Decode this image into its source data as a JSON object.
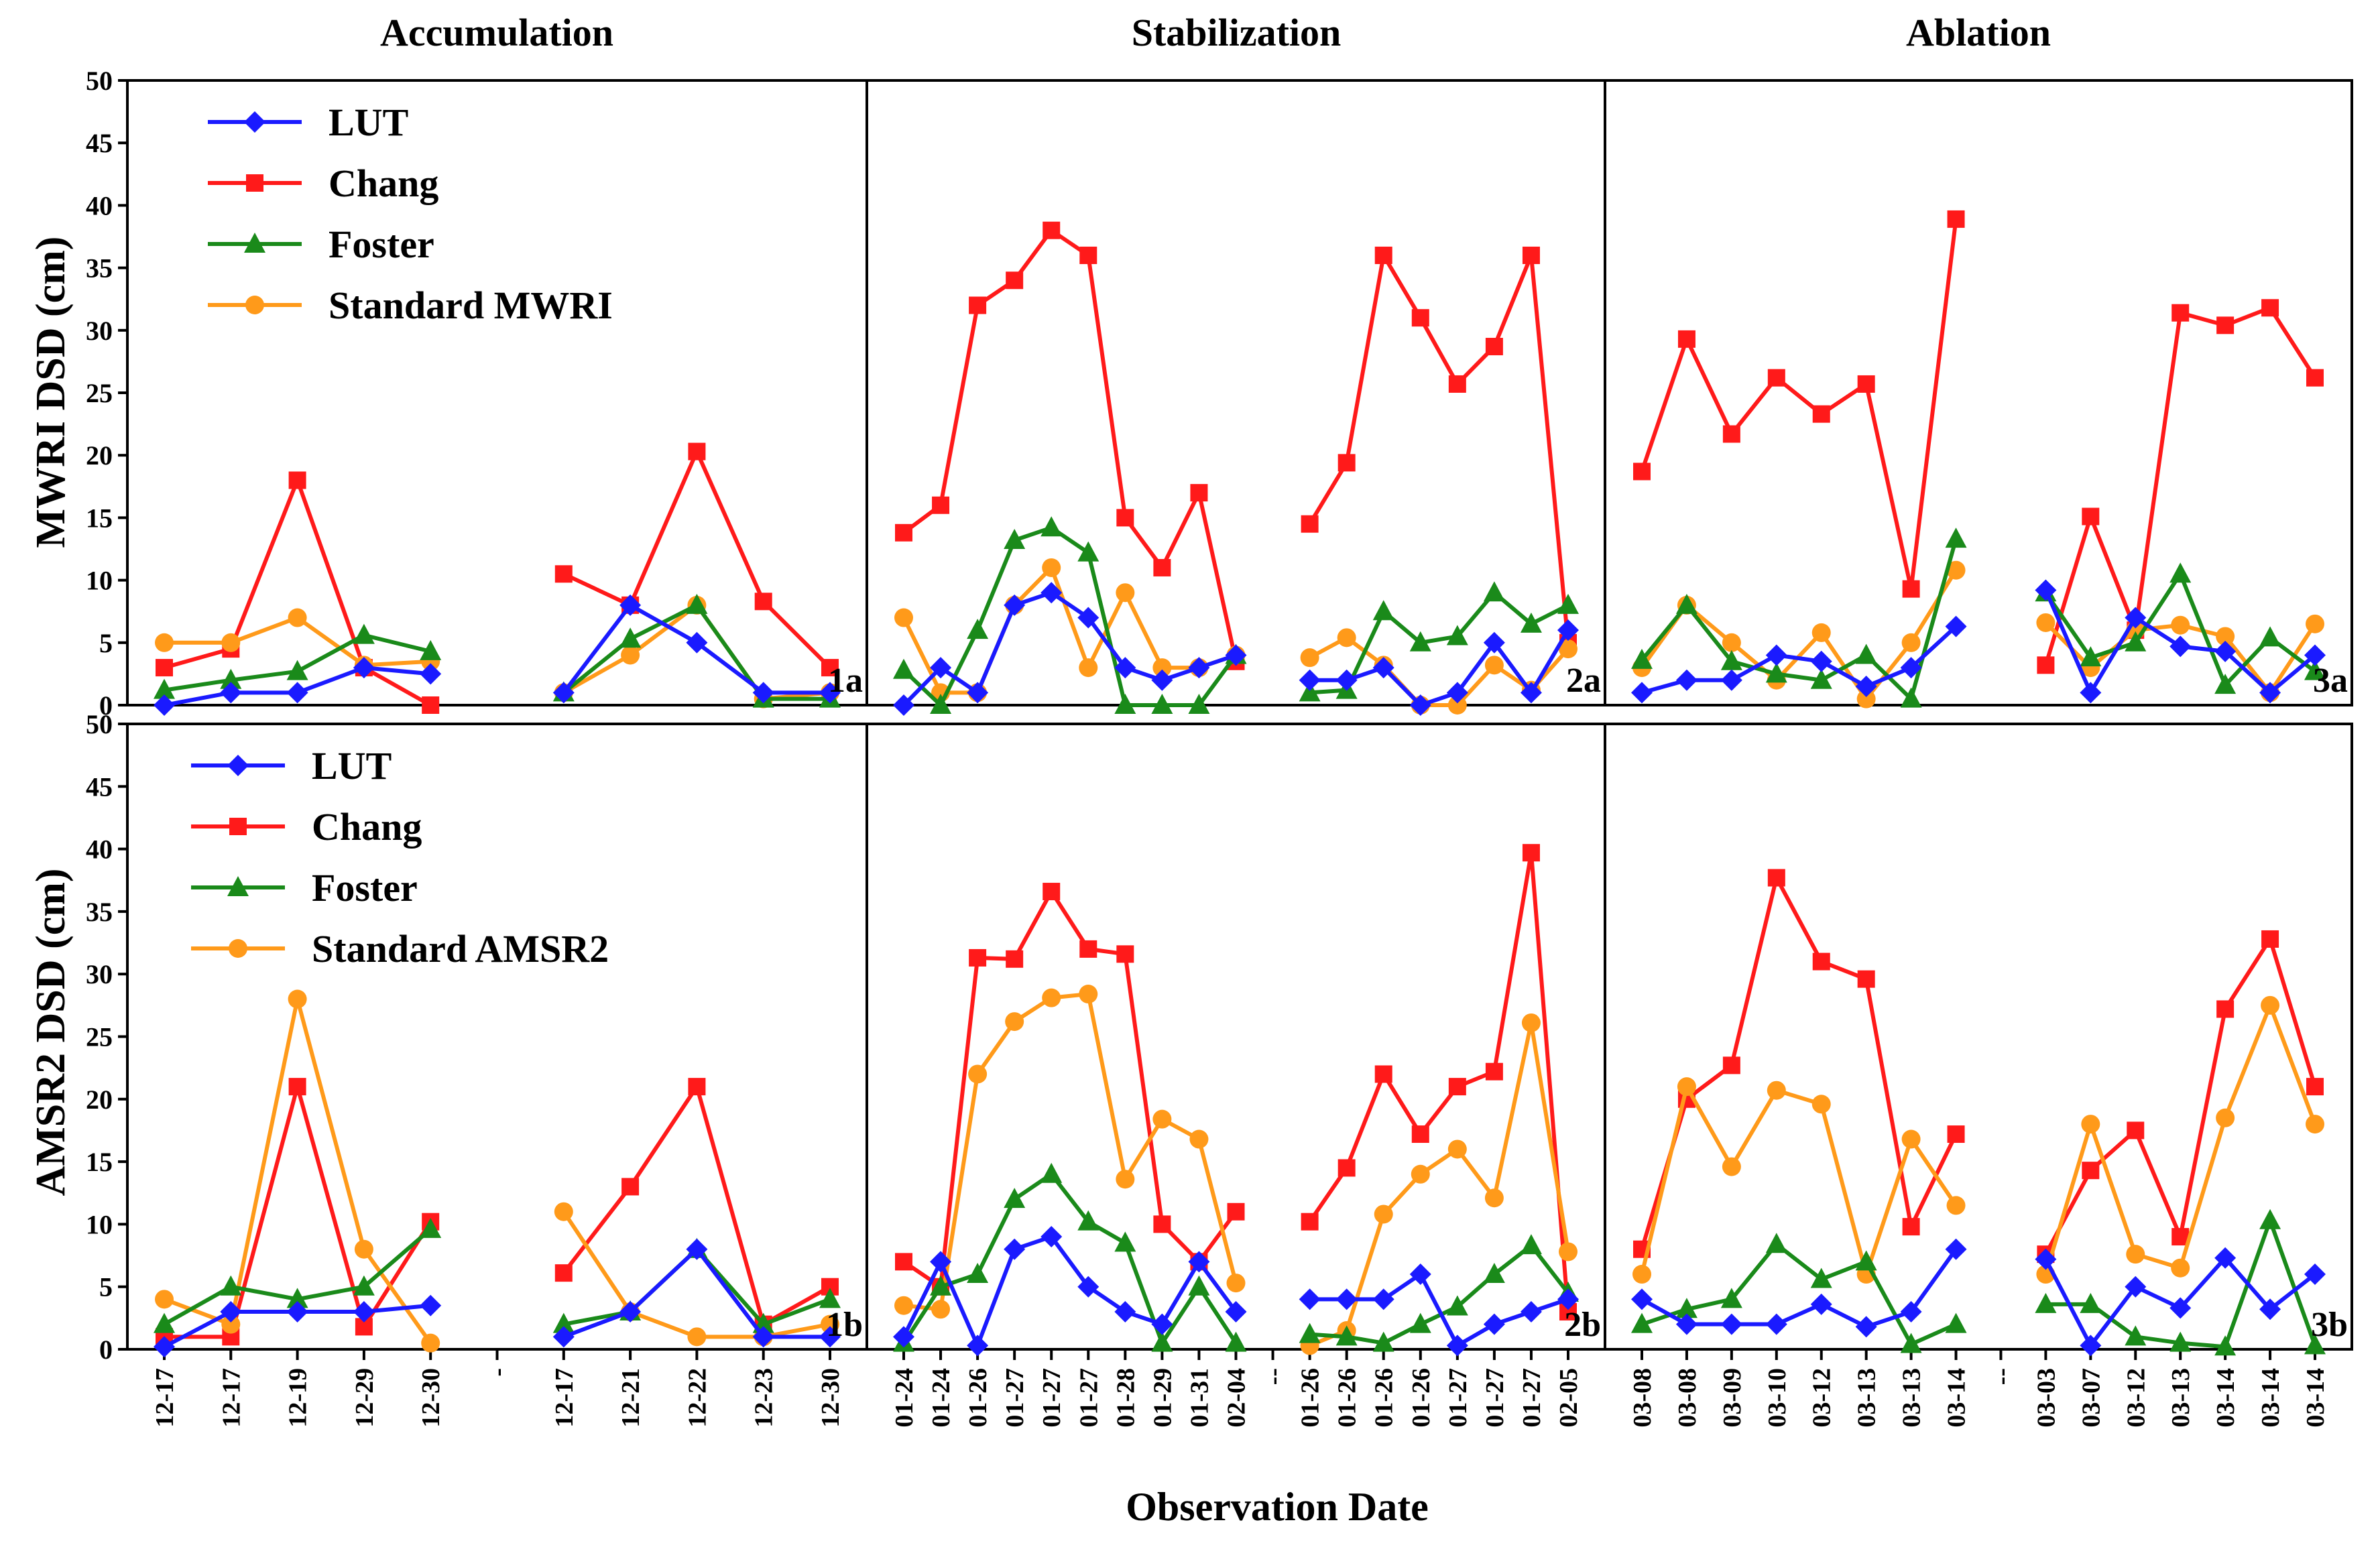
{
  "chart_data": {
    "type": "line",
    "xlabel": "Observation Date",
    "ylim": [
      0,
      50
    ],
    "yticks": [
      0,
      5,
      10,
      15,
      20,
      25,
      30,
      35,
      40,
      45,
      50
    ],
    "stage_titles": [
      "Accumulation",
      "Stabilization",
      "Ablation"
    ],
    "series_colors": {
      "LUT": "#1a1aff",
      "Chang": "#ff1a1a",
      "Foster": "#1a8a1a",
      "Standard": "#ff9a1a"
    },
    "series_markers": {
      "LUT": "diamond",
      "Chang": "square",
      "Foster": "triangle",
      "Standard": "circle"
    },
    "columns": [
      {
        "stage": "Accumulation",
        "categories": [
          "12-17",
          "12-17",
          "12-19",
          "12-29",
          "12-30",
          "-",
          "12-17",
          "12-21",
          "12-22",
          "12-23",
          "12-30"
        ]
      },
      {
        "stage": "Stabilization",
        "categories": [
          "01-24",
          "01-24",
          "01-26",
          "01-27",
          "01-27",
          "01-27",
          "01-28",
          "01-29",
          "01-31",
          "02-04",
          "--",
          "01-26",
          "01-26",
          "01-26",
          "01-26",
          "01-27",
          "01-27",
          "01-27",
          "02-05"
        ]
      },
      {
        "stage": "Ablation",
        "categories": [
          "03-08",
          "03-08",
          "03-09",
          "03-10",
          "03-12",
          "03-13",
          "03-13",
          "03-14",
          "--",
          "03-03",
          "03-07",
          "03-12",
          "03-13",
          "03-14",
          "03-14",
          "03-14"
        ]
      }
    ],
    "rows": [
      {
        "ylabel": "MWRI  DSD (cm)",
        "legend": [
          "LUT",
          "Chang",
          "Foster",
          "Standard MWRI"
        ],
        "panel_labels": [
          "1a",
          "2a",
          "3a"
        ],
        "panels": [
          {
            "LUT": [
              0,
              1,
              1,
              3,
              2.5,
              null,
              1,
              8,
              5,
              1,
              1
            ],
            "Chang": [
              3,
              4.5,
              18,
              3,
              0,
              null,
              10.5,
              8,
              20.3,
              8.3,
              3
            ],
            "Foster": [
              1.2,
              2,
              2.7,
              5.6,
              4.3,
              null,
              1,
              5.3,
              8,
              0.5,
              0.5
            ],
            "Standard": [
              5,
              5,
              7,
              3.2,
              3.5,
              null,
              1,
              4,
              8,
              0.5,
              1
            ]
          },
          {
            "LUT": [
              0,
              3,
              1,
              8,
              9,
              7,
              3,
              2,
              3,
              4,
              null,
              2,
              2,
              3,
              0,
              1,
              5,
              1,
              6
            ],
            "Chang": [
              13.8,
              16,
              32,
              34,
              38,
              36,
              15,
              11,
              17,
              3.5,
              null,
              14.5,
              19.4,
              36,
              31,
              25.7,
              28.7,
              36,
              5
            ],
            "Foster": [
              2.8,
              0,
              6,
              13.2,
              14.2,
              12.2,
              0,
              0,
              0,
              4,
              null,
              1,
              1.2,
              7.5,
              5,
              5.5,
              9,
              6.5,
              8
            ],
            "Standard": [
              7,
              1,
              1,
              8,
              11,
              3,
              9,
              3,
              3,
              4,
              null,
              3.8,
              5.4,
              3.2,
              0,
              0,
              3.2,
              1.2,
              4.5
            ]
          },
          {
            "LUT": [
              1,
              2,
              2,
              4,
              3.5,
              1.5,
              3,
              6.3,
              null,
              9.2,
              1,
              7,
              4.7,
              4.3,
              1,
              4
            ],
            "Chang": [
              18.7,
              29.3,
              21.7,
              26.2,
              23.3,
              25.7,
              9.3,
              38.9,
              null,
              3.2,
              15.1,
              6,
              31.4,
              30.4,
              31.8,
              26.2
            ],
            "Foster": [
              3.6,
              8,
              3.5,
              2.5,
              2,
              4,
              0.5,
              13.3,
              null,
              9,
              3.8,
              5,
              10.5,
              1.6,
              5.4,
              2.7
            ],
            "Standard": [
              3,
              8,
              5,
              2,
              5.8,
              0.5,
              5,
              10.8,
              null,
              6.6,
              3,
              6,
              6.4,
              5.5,
              1,
              6.5
            ]
          }
        ]
      },
      {
        "ylabel": "AMSR2 DSD (cm)",
        "legend": [
          "LUT",
          "Chang",
          "Foster",
          "Standard AMSR2"
        ],
        "panel_labels": [
          "1b",
          "2b",
          "3b"
        ],
        "panels": [
          {
            "LUT": [
              0.2,
              3,
              3,
              3,
              3.5,
              null,
              1,
              3,
              8,
              1,
              1
            ],
            "Chang": [
              1,
              1,
              21,
              1.8,
              10.2,
              null,
              6.1,
              13,
              21,
              2,
              5
            ],
            "Foster": [
              2,
              5,
              4,
              5,
              9.6,
              null,
              2,
              3,
              8,
              2,
              4
            ],
            "Standard": [
              4,
              2,
              28,
              8,
              0.5,
              null,
              11,
              3,
              1,
              1,
              2
            ]
          },
          {
            "LUT": [
              1,
              7,
              0.3,
              8,
              9,
              5,
              3,
              2,
              7,
              3,
              null,
              4,
              4,
              4,
              6,
              0.3,
              2,
              3,
              4
            ],
            "Chang": [
              7,
              5,
              31.3,
              31.2,
              36.6,
              32,
              31.6,
              10,
              7,
              11,
              null,
              10.2,
              14.5,
              22,
              17.2,
              21,
              22.2,
              39.7,
              3
            ],
            "Foster": [
              0.5,
              5,
              6,
              12,
              14,
              10.2,
              8.5,
              0.5,
              5,
              0.5,
              null,
              1.2,
              1,
              0.5,
              2,
              3.4,
              6,
              8.3,
              4.5
            ],
            "Standard": [
              3.5,
              3.2,
              22,
              26.2,
              28.1,
              28.4,
              13.6,
              18.4,
              16.8,
              5.3,
              null,
              0.3,
              1.5,
              10.8,
              14,
              16,
              12.1,
              26.1,
              7.8
            ]
          },
          {
            "LUT": [
              4,
              2,
              2,
              2,
              3.6,
              1.8,
              3,
              8,
              null,
              7.2,
              0.3,
              5,
              3.3,
              7.3,
              3.2,
              6
            ],
            "Chang": [
              8,
              20,
              22.7,
              37.7,
              31,
              29.6,
              9.8,
              17.2,
              null,
              7.6,
              14.3,
              17.5,
              9,
              27.2,
              32.8,
              21
            ],
            "Foster": [
              2,
              3.2,
              4,
              8.4,
              5.6,
              7,
              0.4,
              2,
              null,
              3.6,
              3.6,
              1,
              0.5,
              0.2,
              10.3,
              0.3
            ],
            "Standard": [
              6,
              21,
              14.6,
              20.7,
              19.6,
              6,
              16.8,
              11.5,
              null,
              6,
              18,
              7.6,
              6.5,
              18.5,
              27.5,
              18
            ]
          }
        ]
      }
    ]
  }
}
